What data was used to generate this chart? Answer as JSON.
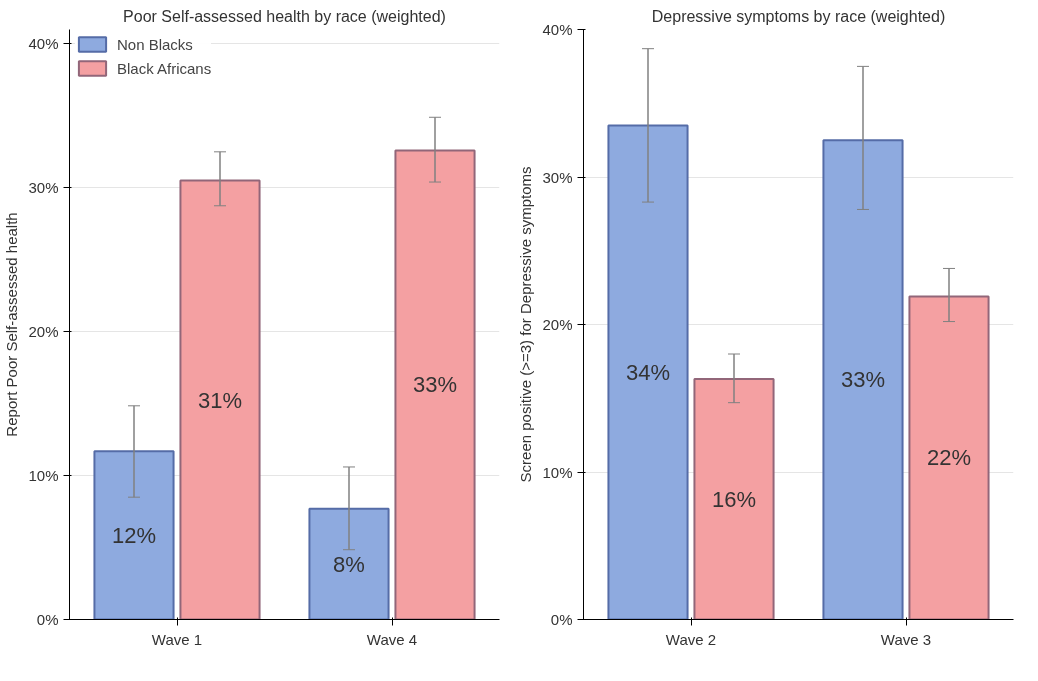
{
  "chart_data": [
    {
      "type": "bar",
      "title": "Poor Self-assessed health by race (weighted)",
      "ylabel": "Report Poor Self-assessed health",
      "categories": [
        "Wave 1",
        "Wave 4"
      ],
      "ylim": [
        0,
        41
      ],
      "yticks": [
        {
          "value": 0,
          "label": "0%"
        },
        {
          "value": 10,
          "label": "10%"
        },
        {
          "value": 20,
          "label": "20%"
        },
        {
          "value": 30,
          "label": "30%"
        },
        {
          "value": 40,
          "label": "40%"
        }
      ],
      "grid": "y",
      "legend": "top left",
      "series": [
        {
          "name": "Non Blacks",
          "color": "#8eaadf",
          "values": [
            11.7,
            7.7
          ],
          "errors": [
            [
              8.5,
              14.85
            ],
            [
              4.85,
              10.6
            ]
          ],
          "value_labels": [
            "12%",
            "8%"
          ]
        },
        {
          "name": "Black Africans",
          "color": "#f4a0a2",
          "values": [
            30.5,
            32.6
          ],
          "errors": [
            [
              28.75,
              32.5
            ],
            [
              30.4,
              34.9
            ]
          ],
          "value_labels": [
            "31%",
            "33%"
          ]
        }
      ]
    },
    {
      "type": "bar",
      "title": "Depressive symptoms by race (weighted)",
      "ylabel": "Screen positive (>=3) for Depressive symptoms",
      "categories": [
        "Wave 2",
        "Wave 3"
      ],
      "ylim": [
        0,
        40
      ],
      "yticks": [
        {
          "value": 0,
          "label": "0%"
        },
        {
          "value": 10,
          "label": "10%"
        },
        {
          "value": 20,
          "label": "20%"
        },
        {
          "value": 30,
          "label": "30%"
        },
        {
          "value": 40,
          "label": "40%"
        }
      ],
      "grid": "y",
      "series": [
        {
          "color": "#8eaadf",
          "values": [
            33.5,
            32.5
          ],
          "errors": [
            [
              28.3,
              38.7
            ],
            [
              27.8,
              37.5
            ]
          ],
          "value_labels": [
            "34%",
            "33%"
          ]
        },
        {
          "color": "#f4a0a2",
          "values": [
            16.3,
            21.9
          ],
          "errors": [
            [
              14.7,
              18.0
            ],
            [
              20.2,
              23.8
            ]
          ],
          "value_labels": [
            "16%",
            "22%"
          ]
        }
      ]
    }
  ]
}
